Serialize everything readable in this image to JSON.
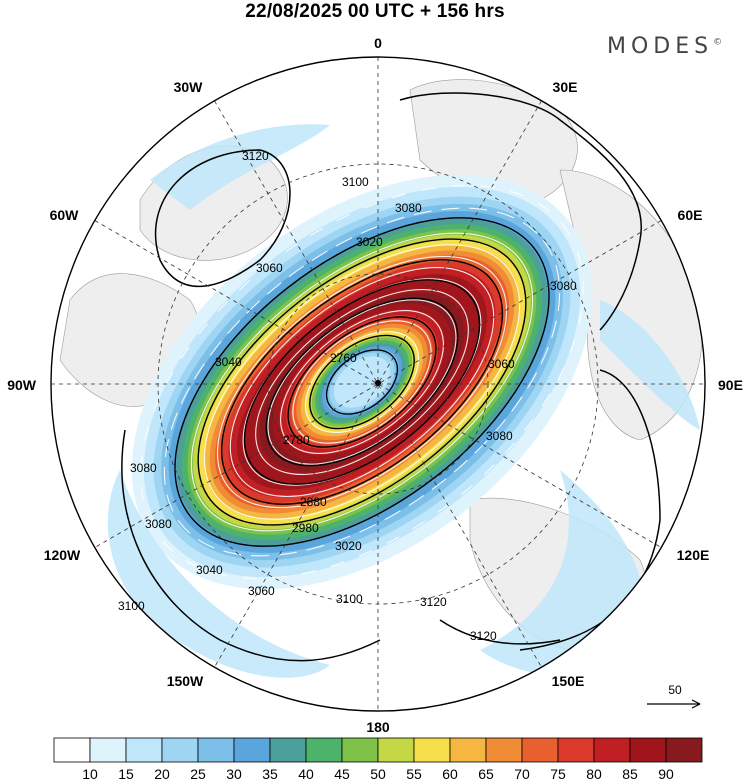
{
  "header": {
    "title": "22/08/2025  00 UTC  + 156 hrs",
    "brand": "MODES",
    "brand_mark": "©"
  },
  "map": {
    "projection": "polar-stereographic-north",
    "longitude_labels": [
      {
        "id": "lon-0",
        "text": "0"
      },
      {
        "id": "lon-30e",
        "text": "30E"
      },
      {
        "id": "lon-60e",
        "text": "60E"
      },
      {
        "id": "lon-90e",
        "text": "90E"
      },
      {
        "id": "lon-120e",
        "text": "120E"
      },
      {
        "id": "lon-150e",
        "text": "150E"
      },
      {
        "id": "lon-180",
        "text": "180"
      },
      {
        "id": "lon-150w",
        "text": "150W"
      },
      {
        "id": "lon-120w",
        "text": "120W"
      },
      {
        "id": "lon-90w",
        "text": "90W"
      },
      {
        "id": "lon-60w",
        "text": "60W"
      },
      {
        "id": "lon-30w",
        "text": "30W"
      }
    ],
    "contour_labels": [
      "3120",
      "3100",
      "3080",
      "3060",
      "3040",
      "3020",
      "3080",
      "2760",
      "2780",
      "2880",
      "2980",
      "3020",
      "3040",
      "3060",
      "3080",
      "3080",
      "3100",
      "3120",
      "3120",
      "3100",
      "3060",
      "3080"
    ],
    "reference_vector_label": "50"
  },
  "colorbar": {
    "tick_labels": [
      "10",
      "15",
      "20",
      "25",
      "30",
      "35",
      "40",
      "45",
      "50",
      "55",
      "60",
      "65",
      "70",
      "75",
      "80",
      "85",
      "90"
    ],
    "colors": [
      "#ffffff",
      "#dff3fc",
      "#bfe6fa",
      "#9ed5f2",
      "#7cbfe8",
      "#5aa6dc",
      "#4c9f9a",
      "#4db36a",
      "#7ec24a",
      "#c4d846",
      "#f6df4a",
      "#f5b642",
      "#f08b36",
      "#e8602d",
      "#d93a2b",
      "#c01f24",
      "#a0161c",
      "#861a1f"
    ]
  }
}
